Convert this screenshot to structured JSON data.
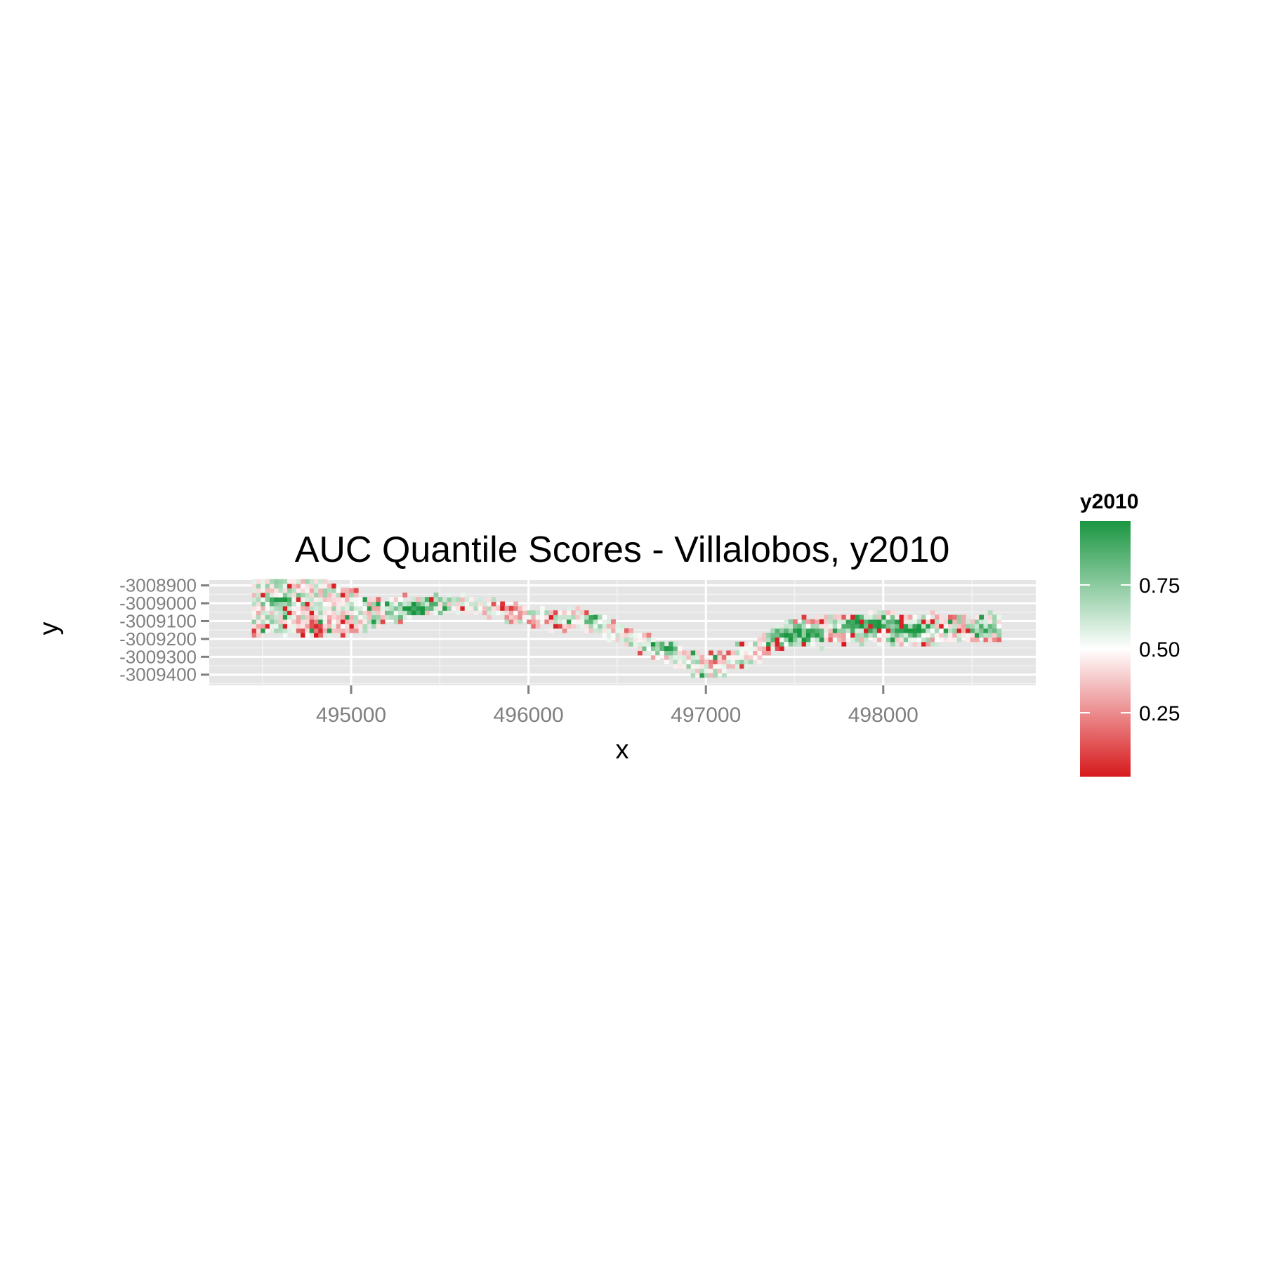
{
  "chart_data": {
    "type": "heatmap",
    "title": "AUC Quantile Scores - Villalobos, y2010",
    "xlabel": "x",
    "ylabel": "y",
    "xlim": [
      494200,
      498860
    ],
    "ylim": [
      -3009460,
      -3008870
    ],
    "x_ticks": [
      495000,
      496000,
      497000,
      498000
    ],
    "x_tick_labels": [
      "495000",
      "496000",
      "497000",
      "498000"
    ],
    "y_ticks": [
      -3008900,
      -3009000,
      -3009100,
      -3009200,
      -3009300,
      -3009400
    ],
    "y_tick_labels": [
      "-3008900",
      "-3009000",
      "-3009100",
      "-3009200",
      "-3009300",
      "-3009400"
    ],
    "grid": true,
    "cell_size": [
      25,
      25
    ],
    "legend": {
      "title": "y2010",
      "placement": "right",
      "range": [
        0,
        1
      ],
      "breaks": [
        0.25,
        0.5,
        0.75
      ],
      "labels": [
        "0.25",
        "0.50",
        "0.75"
      ],
      "colors": {
        "low": "#d7191c",
        "mid": "#ffffff",
        "high": "#1a9641"
      }
    },
    "values_summary": "approximate reading of the raster: mixed scores, green (high) concentrated along the upper channel near x 495300-495500, the trough near x 496700-497000, and the eastern block x 497300-498200; red (low) dominant in the south-west lobe near x 494700-495000 and along southern edges",
    "centerline": [
      [
        494500,
        -3009020
      ],
      [
        494700,
        -3009000
      ],
      [
        494950,
        -3009060
      ],
      [
        495200,
        -3009060
      ],
      [
        495450,
        -3009020
      ],
      [
        495700,
        -3009020
      ],
      [
        495850,
        -3009060
      ],
      [
        496050,
        -3009100
      ],
      [
        496300,
        -3009100
      ],
      [
        496550,
        -3009200
      ],
      [
        496800,
        -3009300
      ],
      [
        497000,
        -3009370
      ],
      [
        497200,
        -3009310
      ],
      [
        497400,
        -3009200
      ],
      [
        497700,
        -3009160
      ],
      [
        498000,
        -3009150
      ],
      [
        498300,
        -3009160
      ],
      [
        498600,
        -3009150
      ]
    ],
    "width_profile": [
      [
        494500,
        320
      ],
      [
        494700,
        380
      ],
      [
        494950,
        260
      ],
      [
        495200,
        130
      ],
      [
        495450,
        110
      ],
      [
        495700,
        80
      ],
      [
        496050,
        90
      ],
      [
        496300,
        100
      ],
      [
        496550,
        100
      ],
      [
        496800,
        110
      ],
      [
        497000,
        120
      ],
      [
        497200,
        130
      ],
      [
        497400,
        150
      ],
      [
        497700,
        160
      ],
      [
        498000,
        160
      ],
      [
        498300,
        160
      ],
      [
        498620,
        140
      ]
    ],
    "hot_spots": [
      [
        494780,
        -3009150,
        170,
        0.25
      ],
      [
        494900,
        -3009300,
        140,
        0.35
      ],
      [
        495850,
        -3009080,
        120,
        0.35
      ],
      [
        496050,
        -3009130,
        120,
        0.3
      ],
      [
        497050,
        -3009340,
        110,
        0.3
      ],
      [
        497700,
        -3009220,
        120,
        0.35
      ],
      [
        498350,
        -3009230,
        120,
        0.35
      ]
    ],
    "green_spots": [
      [
        494600,
        -3009000,
        150,
        0.78
      ],
      [
        495350,
        -3009040,
        200,
        0.82
      ],
      [
        496350,
        -3009100,
        100,
        0.75
      ],
      [
        496750,
        -3009240,
        160,
        0.82
      ],
      [
        497500,
        -3009190,
        200,
        0.8
      ],
      [
        497900,
        -3009130,
        200,
        0.82
      ],
      [
        498150,
        -3009160,
        150,
        0.85
      ],
      [
        498550,
        -3009150,
        100,
        0.78
      ]
    ]
  }
}
